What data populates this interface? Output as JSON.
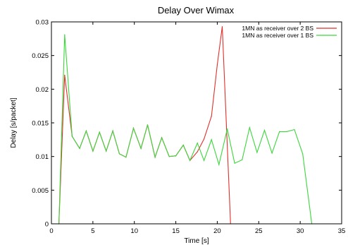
{
  "chart_data": {
    "type": "line",
    "title": "Delay Over Wimax",
    "xlabel": "Time [s]",
    "ylabel": "Delay [s/packet]",
    "xlim": [
      0,
      35
    ],
    "ylim": [
      0,
      0.03
    ],
    "xticks": [
      0,
      5,
      10,
      15,
      20,
      25,
      30,
      35
    ],
    "yticks": [
      0,
      0.005,
      0.01,
      0.015,
      0.02,
      0.025,
      0.03
    ],
    "xtick_labels": [
      "0",
      "5",
      "10",
      "15",
      "20",
      "25",
      "30",
      "35"
    ],
    "ytick_labels": [
      "0",
      "0.005",
      "0.01",
      "0.015",
      "0.02",
      "0.025",
      "0.03"
    ],
    "legend_position": "top-right",
    "grid": false,
    "series": [
      {
        "name": "1MN as receiver over 2 BS",
        "color": "#e0302a",
        "x": [
          0.9,
          1.6,
          2.5,
          3.4,
          4.2,
          5.0,
          5.8,
          6.6,
          7.4,
          8.2,
          9.0,
          9.9,
          10.8,
          11.6,
          12.5,
          13.3,
          14.2,
          15.0,
          15.9,
          16.7,
          17.6,
          18.4,
          19.3,
          20.0,
          20.6,
          21.6
        ],
        "y": [
          0,
          0.0221,
          0.013,
          0.0112,
          0.0138,
          0.0108,
          0.0136,
          0.0108,
          0.0138,
          0.0104,
          0.0099,
          0.0142,
          0.0112,
          0.0147,
          0.0099,
          0.0128,
          0.01,
          0.0101,
          0.0117,
          0.0094,
          0.0107,
          0.0126,
          0.016,
          0.0236,
          0.0293,
          0
        ]
      },
      {
        "name": "1MN as receiver over 1 BS",
        "color": "#3cd63c",
        "x": [
          0.9,
          1.6,
          2.5,
          3.4,
          4.2,
          5.0,
          5.8,
          6.6,
          7.4,
          8.2,
          9.0,
          9.9,
          10.8,
          11.6,
          12.5,
          13.3,
          14.2,
          15.0,
          15.9,
          16.7,
          17.6,
          18.4,
          19.3,
          20.2,
          21.2,
          22.1,
          23.0,
          23.9,
          24.8,
          25.7,
          26.6,
          27.5,
          28.4,
          29.3,
          30.3,
          31.4
        ],
        "y": [
          0,
          0.0281,
          0.013,
          0.0112,
          0.0138,
          0.0108,
          0.0136,
          0.0108,
          0.0138,
          0.0104,
          0.0099,
          0.0142,
          0.0112,
          0.0147,
          0.0099,
          0.0128,
          0.01,
          0.0101,
          0.0117,
          0.0094,
          0.012,
          0.0094,
          0.0125,
          0.0088,
          0.0141,
          0.009,
          0.0095,
          0.0143,
          0.0106,
          0.0139,
          0.0105,
          0.0137,
          0.0137,
          0.014,
          0.0104,
          0
        ]
      }
    ]
  }
}
